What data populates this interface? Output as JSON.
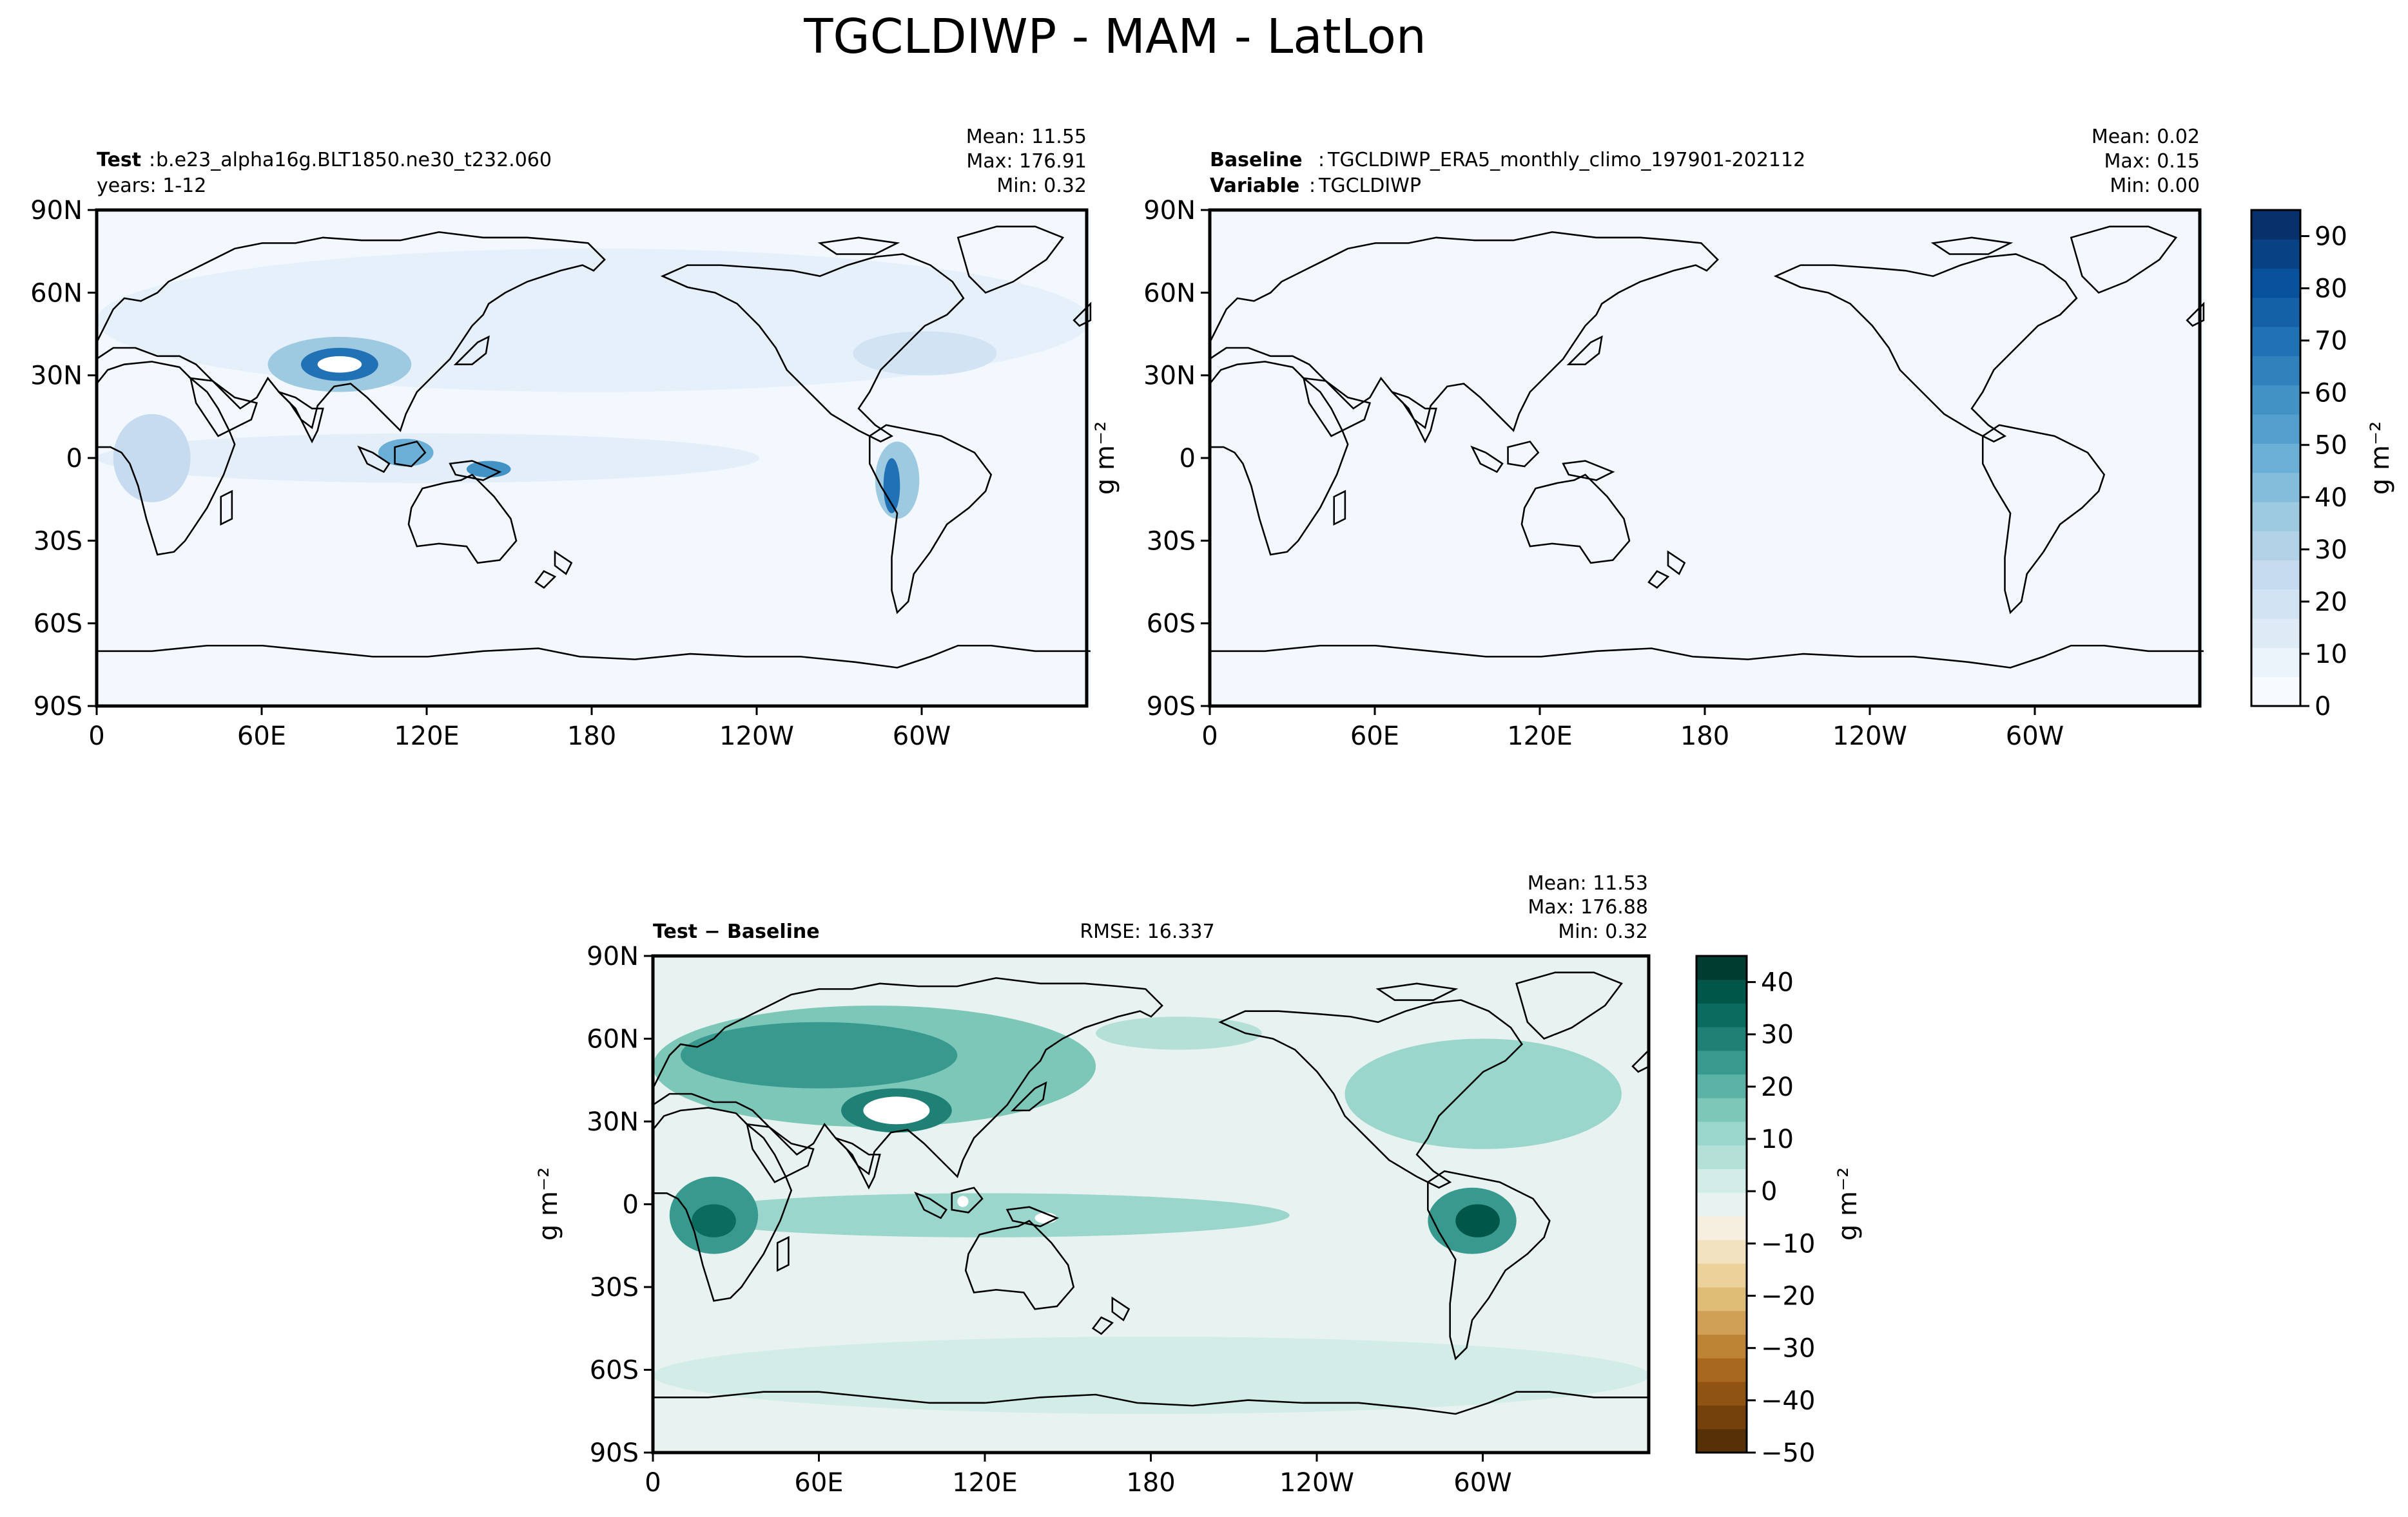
{
  "figure_title": "TGCLDIWP - MAM - LatLon",
  "chart_data": [
    {
      "type": "heatmap",
      "panel": "test",
      "label_bold": "Test",
      "label_text": "b.e23_alpha16g.BLT1850.ne30_t232.060",
      "label2_text": "years: 1-12",
      "stats": {
        "mean": "Mean: 11.55",
        "max": "Max: 176.91",
        "min": "Min:  0.32"
      },
      "xticks": [
        "0",
        "60E",
        "120E",
        "180",
        "120W",
        "60W"
      ],
      "yticks": [
        "90N",
        "60N",
        "30N",
        "0",
        "30S",
        "60S",
        "90S"
      ],
      "xlim": [
        0,
        360
      ],
      "ylim": [
        -90,
        90
      ],
      "colormap": "Blues",
      "colorbar": {
        "ticks": [
          "90",
          "80",
          "70",
          "60",
          "50",
          "40",
          "30",
          "20",
          "10",
          "0"
        ],
        "range": [
          0,
          95
        ],
        "label": "g m⁻²"
      }
    },
    {
      "type": "heatmap",
      "panel": "baseline",
      "label_bold": "Baseline",
      "label_text": "TGCLDIWP_ERA5_monthly_climo_197901-202112",
      "label2_bold": "Variable",
      "label2_text": "TGCLDIWP",
      "stats": {
        "mean": "Mean:  0.02",
        "max": "Max:  0.15",
        "min": "Min:  0.00"
      },
      "xticks": [
        "0",
        "60E",
        "120E",
        "180",
        "120W",
        "60W"
      ],
      "yticks": [
        "90N",
        "60N",
        "30N",
        "0",
        "30S",
        "60S",
        "90S"
      ],
      "xlim": [
        0,
        360
      ],
      "ylim": [
        -90,
        90
      ],
      "colormap": "Blues",
      "ylabel": "g m⁻²"
    },
    {
      "type": "heatmap",
      "panel": "difference",
      "label_bold": "Test − Baseline",
      "rmse": "RMSE: 16.337",
      "stats": {
        "mean": "Mean: 11.53",
        "max": "Max: 176.88",
        "min": "Min:  0.32"
      },
      "xticks": [
        "0",
        "60E",
        "120E",
        "180",
        "120W",
        "60W"
      ],
      "yticks": [
        "90N",
        "60N",
        "30N",
        "0",
        "30S",
        "60S",
        "90S"
      ],
      "xlim": [
        0,
        360
      ],
      "ylim": [
        -90,
        90
      ],
      "colormap": "BrBG",
      "ylabel": "g m⁻²",
      "colorbar": {
        "ticks": [
          "40",
          "30",
          "20",
          "10",
          "0",
          "−10",
          "−20",
          "−30",
          "−40",
          "−50"
        ],
        "range": [
          -50,
          45
        ],
        "label": "g m⁻²"
      }
    }
  ],
  "colors": {
    "blues": [
      "#f7fbff",
      "#ebf3fb",
      "#deebf7",
      "#d2e3f3",
      "#c6dbef",
      "#b2d2e8",
      "#9ecae1",
      "#84bcdc",
      "#6baed6",
      "#539ecd",
      "#4292c6",
      "#3181bd",
      "#2171b5",
      "#1461a8",
      "#08519c",
      "#084285",
      "#08306b"
    ],
    "teals": [
      "#e8f3f1",
      "#d2ece7",
      "#b4e0d8",
      "#9ad6cb",
      "#7cc7b8",
      "#5ab2a6",
      "#389a8f",
      "#1f8176",
      "#0a6b5f",
      "#01564a",
      "#003c30"
    ],
    "browns": [
      "#f6efdf",
      "#f2e2bf",
      "#ebd29a",
      "#e0bd77",
      "#cfa056",
      "#be8436",
      "#a8681d",
      "#8f5312",
      "#74400c",
      "#563006"
    ]
  }
}
